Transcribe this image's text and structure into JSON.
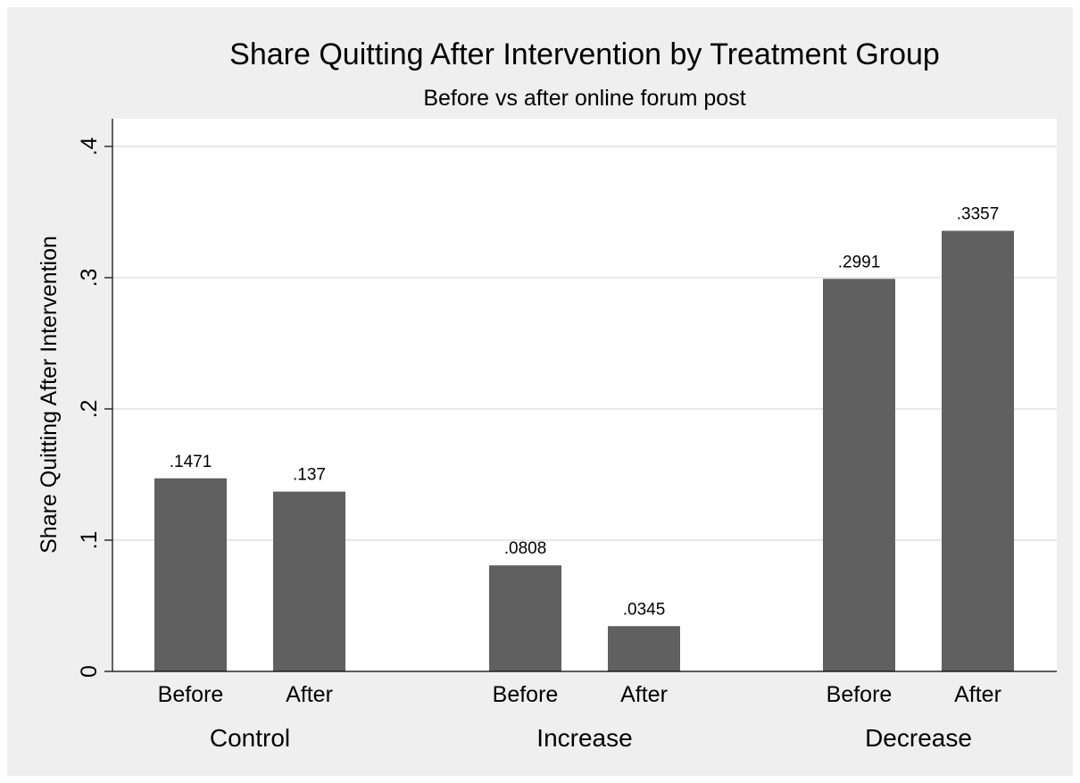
{
  "chart_data": {
    "type": "bar",
    "title": "Share Quitting After Intervention by Treatment Group",
    "subtitle": "Before vs after online forum post",
    "ylabel": "Share Quitting After Intervention",
    "xlabel": "",
    "ylim": [
      0,
      0.4
    ],
    "yticks": [
      {
        "value": 0,
        "label": "0"
      },
      {
        "value": 0.1,
        "label": ".1"
      },
      {
        "value": 0.2,
        "label": ".2"
      },
      {
        "value": 0.3,
        "label": ".3"
      },
      {
        "value": 0.4,
        "label": ".4"
      }
    ],
    "grid": true,
    "bar_color": "#606060",
    "plot_background": "#ffffff",
    "outer_background": "#efefef",
    "grid_color": "#e8e8e8",
    "groups": [
      {
        "name": "Control",
        "bars": [
          {
            "label": "Before",
            "value": 0.1471,
            "value_label": ".1471"
          },
          {
            "label": "After",
            "value": 0.137,
            "value_label": ".137"
          }
        ]
      },
      {
        "name": "Increase",
        "bars": [
          {
            "label": "Before",
            "value": 0.0808,
            "value_label": ".0808"
          },
          {
            "label": "After",
            "value": 0.0345,
            "value_label": ".0345"
          }
        ]
      },
      {
        "name": "Decrease",
        "bars": [
          {
            "label": "Before",
            "value": 0.2991,
            "value_label": ".2991"
          },
          {
            "label": "After",
            "value": 0.3357,
            "value_label": ".3357"
          }
        ]
      }
    ]
  }
}
